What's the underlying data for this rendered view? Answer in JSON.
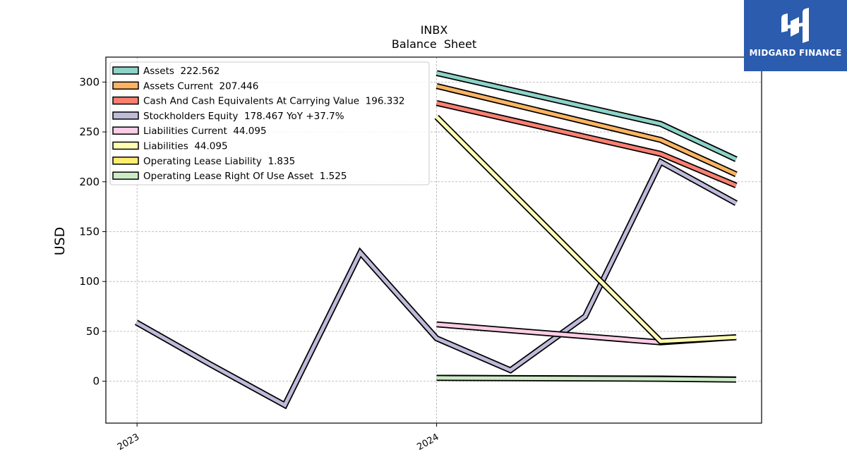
{
  "chart_data": {
    "type": "line",
    "title": "INBX",
    "subtitle": "Balance  Sheet",
    "ylabel": "USD",
    "xlabel": "",
    "ylim": [
      -42,
      325
    ],
    "yticks": [
      0,
      50,
      100,
      150,
      200,
      250,
      300
    ],
    "xticks": [
      {
        "label": "2023",
        "x": "2023-01-01"
      },
      {
        "label": "2024",
        "x": "2024-01-01"
      }
    ],
    "xlim": [
      "2022-11-24",
      "2025-01-31"
    ],
    "grid": true,
    "legend_position": "upper-left",
    "series": [
      {
        "name": "Assets",
        "legend": "Assets  222.562",
        "color": "#8dd3c7",
        "x": [
          "2024-01-01",
          "2024-09-30",
          "2024-12-31"
        ],
        "y": [
          309,
          258,
          222.562
        ]
      },
      {
        "name": "Assets Current",
        "legend": "Assets Current  207.446",
        "color": "#fdb462",
        "x": [
          "2024-01-01",
          "2024-09-30",
          "2024-12-31"
        ],
        "y": [
          296,
          242,
          207.446
        ]
      },
      {
        "name": "Cash And Cash Equivalents At Carrying Value",
        "legend": "Cash And Cash Equivalents At Carrying Value  196.332",
        "color": "#fb8072",
        "x": [
          "2024-01-01",
          "2024-09-30",
          "2024-12-31"
        ],
        "y": [
          279,
          228,
          196.332
        ]
      },
      {
        "name": "Stockholders Equity",
        "legend": "Stockholders Equity  178.467 YoY +37.7%",
        "color": "#bebada",
        "x": [
          "2022-12-31",
          "2023-03-31",
          "2023-06-30",
          "2023-09-30",
          "2024-01-01",
          "2024-03-31",
          "2024-06-30",
          "2024-09-30",
          "2024-12-31"
        ],
        "y": [
          59,
          17,
          -24,
          129,
          43,
          11,
          65,
          220,
          178.467
        ]
      },
      {
        "name": "Liabilities Current",
        "legend": "Liabilities Current  44.095",
        "color": "#fccde5",
        "x": [
          "2024-01-01",
          "2024-09-30",
          "2024-12-31"
        ],
        "y": [
          57,
          39,
          44.095
        ]
      },
      {
        "name": "Liabilities",
        "legend": "Liabilities  44.095",
        "color": "#ffffb3",
        "x": [
          "2024-01-01",
          "2024-09-30",
          "2024-12-31"
        ],
        "y": [
          265,
          40,
          44.095
        ]
      },
      {
        "name": "Operating Lease Liability",
        "legend": "Operating Lease Liability  1.835",
        "color": "#ffed6f",
        "x": [
          "2024-01-01",
          "2024-09-30",
          "2024-12-31"
        ],
        "y": [
          3.5,
          2.7,
          1.835
        ]
      },
      {
        "name": "Operating Lease Right Of Use Asset",
        "legend": "Operating Lease Right Of Use Asset  1.525",
        "color": "#ccebc5",
        "x": [
          "2024-01-01",
          "2024-09-30",
          "2024-12-31"
        ],
        "y": [
          3.3,
          2.4,
          1.525
        ]
      }
    ]
  },
  "logo": {
    "text": "MIDGARD FINANCE",
    "background": "#2b5cad"
  }
}
